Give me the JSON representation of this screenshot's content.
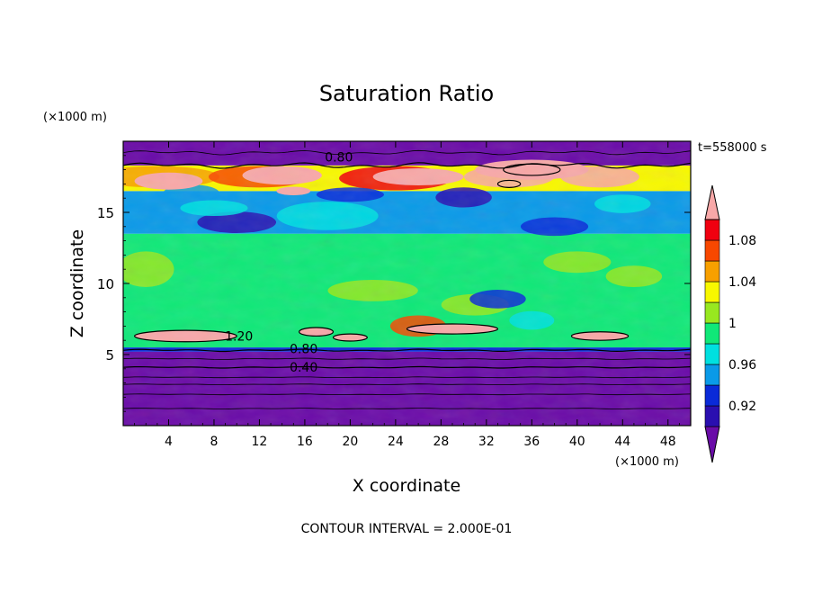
{
  "chart_data": {
    "type": "heatmap",
    "title": "Saturation Ratio",
    "xlabel": "X coordinate",
    "ylabel": "Z coordinate",
    "x_unit": "(×1000 m)",
    "y_unit": "(×1000 m)",
    "time_label": "t=558000 s",
    "footer": "CONTOUR INTERVAL = 2.000E-01",
    "xlim": [
      0,
      50
    ],
    "ylim": [
      0,
      20
    ],
    "x_ticks": [
      4,
      8,
      12,
      16,
      20,
      24,
      28,
      32,
      36,
      40,
      44,
      48
    ],
    "y_ticks": [
      5,
      10,
      15
    ],
    "colorbar": {
      "levels": [
        0.9,
        0.92,
        0.94,
        0.96,
        0.98,
        1.0,
        1.02,
        1.04,
        1.06,
        1.08,
        1.1
      ],
      "labels": [
        "0.92",
        "0.96",
        "1",
        "1.04",
        "1.08"
      ],
      "label_values": [
        0.92,
        0.96,
        1.0,
        1.04,
        1.08
      ],
      "colors": [
        "#6a0ca8",
        "#2a0fb0",
        "#0a2ad8",
        "#0a9ae8",
        "#00e0e0",
        "#10e878",
        "#98e820",
        "#f8f800",
        "#f8a000",
        "#f84800",
        "#f00010",
        "#f8a8a8"
      ]
    },
    "contour_labels": [
      {
        "text": "0.80",
        "x": 19.0,
        "z": 18.9
      },
      {
        "text": "1.20",
        "x": 10.2,
        "z": 6.3
      },
      {
        "text": "0.80",
        "x": 15.9,
        "z": 5.4
      },
      {
        "text": "0.40",
        "x": 15.9,
        "z": 4.1
      }
    ]
  }
}
